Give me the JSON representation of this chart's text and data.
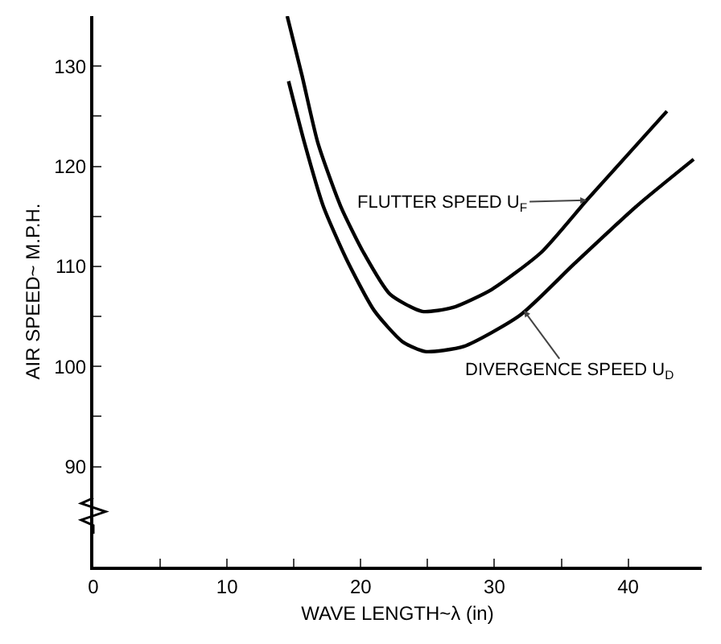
{
  "chart_data": {
    "type": "line",
    "xlabel": "WAVE LENGTH~λ (in)",
    "ylabel": "AIR SPEED~ M.P.H.",
    "xlim": [
      0,
      45.5
    ],
    "xticks": [
      0,
      {
        "value": 5,
        "label": null
      },
      10,
      {
        "value": 15,
        "label": null
      },
      20,
      {
        "value": 25,
        "label": null
      },
      30,
      {
        "value": 35,
        "label": null
      },
      40
    ],
    "ylim": [
      80,
      135
    ],
    "yticks": [
      90,
      {
        "value": 95,
        "label": null
      },
      100,
      {
        "value": 105,
        "label": null
      },
      110,
      {
        "value": 115,
        "label": null
      },
      120,
      {
        "value": 125,
        "label": null
      },
      130
    ],
    "grid": false,
    "marker": "none",
    "line_style": "solid",
    "series": [
      {
        "color": "#000000",
        "x": [
          14.5,
          15.6,
          16.8,
          18.5,
          20.2,
          22.2,
          24.6,
          26.9,
          29.8,
          33.5,
          36.9,
          40.2,
          42.9
        ],
        "values": [
          135,
          129.1,
          122.3,
          116.0,
          111.4,
          107.2,
          105.5,
          105.9,
          107.7,
          111.4,
          116.6,
          121.5,
          125.5
        ]
      },
      {
        "color": "#000000",
        "x": [
          14.6,
          15.8,
          17.2,
          18.9,
          21.0,
          23.1,
          24.8,
          27.7,
          31.9,
          36.0,
          40.7,
          44.9
        ],
        "values": [
          128.5,
          122.3,
          116.0,
          110.8,
          105.6,
          102.5,
          101.5,
          102.0,
          105.1,
          110.3,
          116.1,
          120.7
        ]
      }
    ],
    "annotations": [
      {
        "text": "FLUTTER SPEED U$_{F}$",
        "x": 36.9,
        "y": 116.6
      },
      {
        "text": "DIVERGENCE SPEED U$_{D}$",
        "x": 32.2,
        "y": 105.6
      }
    ]
  }
}
